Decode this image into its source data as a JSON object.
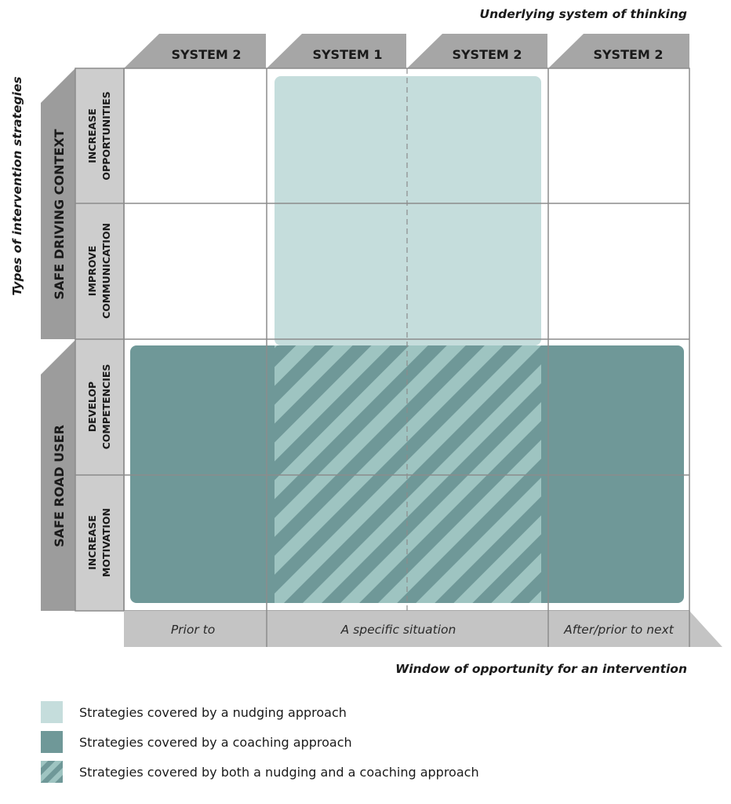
{
  "axes": {
    "top_title": "Underlying system of thinking",
    "left_title": "Types of intervention strategies",
    "bottom_title": "Window of opportunity for an intervention"
  },
  "column_headers": [
    "SYSTEM 2",
    "SYSTEM 1",
    "SYSTEM 2",
    "SYSTEM 2"
  ],
  "row_groups": [
    {
      "label": "SAFE DRIVING CONTEXT",
      "rows": [
        [
          "INCREASE",
          "OPPORTUNITIES"
        ],
        [
          "IMPROVE",
          "COMMUNICATION"
        ]
      ]
    },
    {
      "label": "SAFE ROAD USER",
      "rows": [
        [
          "DEVELOP",
          "COMPETENCIES"
        ],
        [
          "INCREASE",
          "MOTIVATION"
        ]
      ]
    }
  ],
  "windows": [
    "Prior to",
    "A specific situation",
    "After/prior to next"
  ],
  "legend": [
    {
      "swatch": "nudging",
      "label": "Strategies covered by a nudging approach"
    },
    {
      "swatch": "coaching",
      "label": "Strategies covered by a coaching approach"
    },
    {
      "swatch": "both",
      "label": "Strategies covered by both a nudging and a coaching approach"
    }
  ],
  "colors": {
    "nudging": "#c5dddc",
    "coaching": "#6f9898",
    "stripe_light": "#9ec4c1",
    "header_gray": "#a6a6a6",
    "group_gray": "#9c9c9c",
    "row_gray": "#cdcdcd",
    "window_gray": "#c4c4c4",
    "grid_line": "#8c8c8c"
  }
}
